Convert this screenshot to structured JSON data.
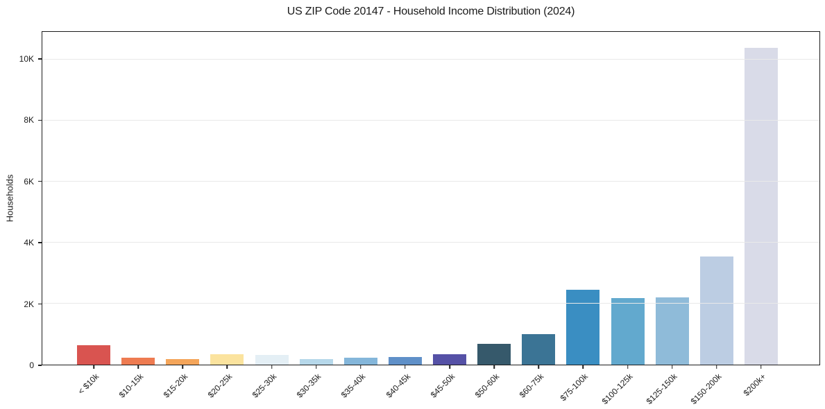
{
  "chart_data": {
    "type": "bar",
    "title": "US ZIP Code 20147 - Household Income Distribution (2024)",
    "xlabel": "",
    "ylabel": "Households",
    "ylim": [
      0,
      10900
    ],
    "grid": true,
    "grid_axis": "y",
    "legend": "none",
    "categories": [
      "< $10k",
      "$10-15k",
      "$15-20k",
      "$20-25k",
      "$25-30k",
      "$30-35k",
      "$35-40k",
      "$40-45k",
      "$45-50k",
      "$50-60k",
      "$60-75k",
      "$75-100k",
      "$100-125k",
      "$125-150k",
      "$150-200k",
      "$200k+"
    ],
    "values": [
      630,
      220,
      175,
      350,
      310,
      190,
      230,
      250,
      330,
      690,
      990,
      2450,
      2190,
      2210,
      3540,
      10380
    ],
    "bar_colors": [
      "#d95450",
      "#ee7b51",
      "#f4a55a",
      "#fbe39e",
      "#e4eff5",
      "#b6d8ea",
      "#84b6da",
      "#5f90c8",
      "#5551a6",
      "#36596b",
      "#3b7495",
      "#3a8ec2",
      "#62a9ce",
      "#8fbbd9",
      "#bccde3",
      "#d9dbe8"
    ],
    "y_tick_values": [
      0,
      2000,
      4000,
      6000,
      8000,
      10000
    ],
    "y_tick_labels": [
      "0",
      "2K",
      "4K",
      "6K",
      "8K",
      "10K"
    ],
    "x_tick_rotation_deg": 45,
    "spine_color": "#1c1c1c",
    "gridline_color": "#e9e9e9",
    "background_color": "#ffffff"
  }
}
